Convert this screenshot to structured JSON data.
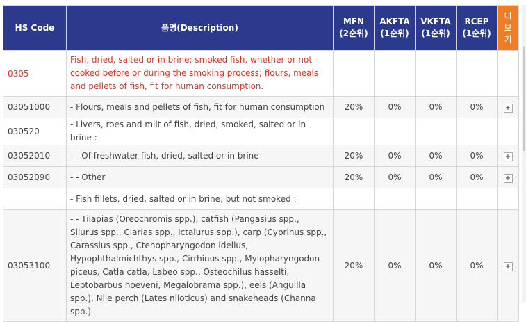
{
  "table": {
    "headers": {
      "hs_code": "HS Code",
      "description": "품명(Description)",
      "mfn": [
        "MFN",
        "(2순위)"
      ],
      "akfta": [
        "AKFTA",
        "(1순위)"
      ],
      "vkfta": [
        "VKFTA",
        "(1순위)"
      ],
      "rcep": [
        "RCEP",
        "(1순위)"
      ],
      "more": [
        "더",
        "보",
        "기"
      ]
    },
    "rows": [
      {
        "code": "0305",
        "desc": "Fish, dried, salted or in brine; smoked fish, whether or not cooked before or during the smoking process; flours, meals and pellets of fish, fit for human consumption.",
        "mfn": "",
        "akfta": "",
        "vkfta": "",
        "rcep": "",
        "expand": ""
      },
      {
        "code": "03051000",
        "desc": "- Flours, meals and pellets of fish, fit for human consumption",
        "mfn": "20%",
        "akfta": "0%",
        "vkfta": "0%",
        "rcep": "0%",
        "expand": "+"
      },
      {
        "code": "030520",
        "desc": "- Livers, roes and milt of fish, dried, smoked, salted or in brine :",
        "mfn": "",
        "akfta": "",
        "vkfta": "",
        "rcep": "",
        "expand": ""
      },
      {
        "code": "03052010",
        "desc": "- - Of freshwater fish, dried, salted or in brine",
        "mfn": "20%",
        "akfta": "0%",
        "vkfta": "0%",
        "rcep": "0%",
        "expand": "+"
      },
      {
        "code": "03052090",
        "desc": "- - Other",
        "mfn": "20%",
        "akfta": "0%",
        "vkfta": "0%",
        "rcep": "0%",
        "expand": "+"
      },
      {
        "code": "",
        "desc": "- Fish fillets, dried, salted or in brine, but not smoked :",
        "mfn": "",
        "akfta": "",
        "vkfta": "",
        "rcep": "",
        "expand": ""
      },
      {
        "code": "03053100",
        "desc": "- - Tilapias (Oreochromis spp.), catfish (Pangasius spp., Silurus spp., Clarias spp., Ictalurus spp.), carp (Cyprinus spp., Carassius spp., Ctenopharyngodon idellus, Hypophthalmichthys spp., Cirrhinus spp., Mylopharyngodon piceus, Catla catla, Labeo spp., Osteochilus hasselti, Leptobarbus hoeveni, Megalobrama spp.), eels (Anguilla spp.), Nile perch (Lates niloticus) and snakeheads (Channa spp.)",
        "mfn": "20%",
        "akfta": "0%",
        "vkfta": "0%",
        "rcep": "0%",
        "expand": "+"
      }
    ]
  }
}
